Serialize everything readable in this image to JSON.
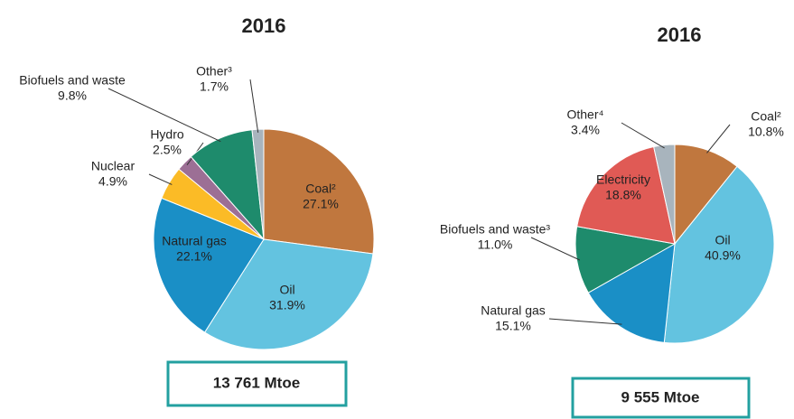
{
  "chart_data": [
    {
      "type": "pie",
      "title": "2016",
      "categories": [
        "Coal²",
        "Oil",
        "Natural gas",
        "Nuclear",
        "Hydro",
        "Biofuels and waste",
        "Other³"
      ],
      "values": [
        27.1,
        31.9,
        22.1,
        4.9,
        2.5,
        9.8,
        1.7
      ],
      "value_labels": [
        "27.1%",
        "31.9%",
        "22.1%",
        "4.9%",
        "2.5%",
        "9.8%",
        "1.7%"
      ],
      "colors": [
        "#c0773e",
        "#63c3e0",
        "#1a8fc6",
        "#fbbb26",
        "#9c6f95",
        "#1e8b6c",
        "#a8b4bd"
      ],
      "total_label": "13 761 Mtoe"
    },
    {
      "type": "pie",
      "title": "2016",
      "categories": [
        "Coal²",
        "Oil",
        "Natural gas",
        "Biofuels and waste³",
        "Electricity",
        "Other⁴"
      ],
      "values": [
        10.8,
        40.9,
        15.1,
        11.0,
        18.8,
        3.4
      ],
      "value_labels": [
        "10.8%",
        "40.9%",
        "15.1%",
        "11.0%",
        "18.8%",
        "3.4%"
      ],
      "colors": [
        "#c0773e",
        "#63c3e0",
        "#1a8fc6",
        "#1e8b6c",
        "#e05a55",
        "#a8b4bd"
      ],
      "total_label": "9 555 Mtoe"
    }
  ]
}
